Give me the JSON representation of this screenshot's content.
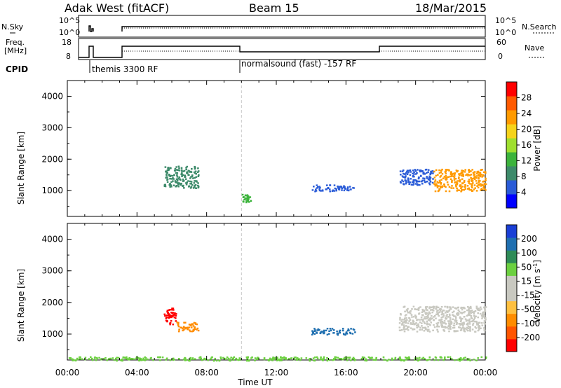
{
  "header": {
    "station": "Adak West (fitACF)",
    "beam": "Beam 15",
    "date": "18/Mar/2015"
  },
  "noise_panel": {
    "left_label": "N.Sky",
    "right_label": "N.Search",
    "left_ticks": [
      "10^5",
      "10^0"
    ],
    "right_ticks": [
      "10^5",
      "10^0"
    ]
  },
  "freq_panel": {
    "left_label_1": "Freq.",
    "left_label_2": "[MHz]",
    "right_label": "Nave",
    "left_ticks": [
      "18",
      "8"
    ],
    "right_ticks": [
      "60",
      "0"
    ]
  },
  "cpid": {
    "label": "CPID",
    "modes": [
      {
        "name": "themis 3300 RF",
        "start_hour": 1.5
      },
      {
        "name": "normalsound (fast) -157 RF",
        "start_hour": 10.0
      }
    ]
  },
  "time_axis": {
    "label": "Time UT",
    "ticks": [
      "00:00",
      "04:00",
      "08:00",
      "12:00",
      "16:00",
      "20:00",
      "00:00"
    ],
    "range_hours": [
      0,
      24
    ]
  },
  "colors": {
    "power_scale": [
      "#0000ff",
      "#2a5bd7",
      "#3d8a6a",
      "#3cb33c",
      "#9fdf2f",
      "#f5d31a",
      "#ff9a00",
      "#ff5a00",
      "#ff0000"
    ],
    "velocity_scale": [
      "#ff0000",
      "#ff5500",
      "#ff8c00",
      "#ffc040",
      "#c8c8c0",
      "#c8c8c0",
      "#6cd040",
      "#2e8b57",
      "#1f6fb0",
      "#1a3fd6"
    ]
  },
  "chart_data": [
    {
      "type": "heatmap",
      "title": "",
      "xlabel": "Time UT",
      "ylabel": "Slant Range [km]",
      "xlim": [
        0,
        24
      ],
      "ylim": [
        180,
        4500
      ],
      "yticks": [
        "1000",
        "2000",
        "3000",
        "4000"
      ],
      "colorbar": {
        "label": "Power [dB]",
        "range": [
          0,
          32
        ],
        "ticks": [
          "4",
          "8",
          "12",
          "16",
          "20",
          "24",
          "28"
        ]
      },
      "regions": [
        {
          "t_start": 5.5,
          "t_end": 7.5,
          "range_start": 1100,
          "range_end": 1800,
          "value_dB": 10
        },
        {
          "t_start": 10.0,
          "t_end": 10.5,
          "range_start": 650,
          "range_end": 900,
          "value_dB": 14
        },
        {
          "t_start": 14.0,
          "t_end": 16.5,
          "range_start": 1000,
          "range_end": 1200,
          "value_dB": 5
        },
        {
          "t_start": 19.0,
          "t_end": 21.0,
          "range_start": 1200,
          "range_end": 1700,
          "value_dB": 6
        },
        {
          "t_start": 21.0,
          "t_end": 24.0,
          "range_start": 1000,
          "range_end": 1700,
          "value_dB": 24
        }
      ]
    },
    {
      "type": "heatmap",
      "title": "",
      "xlabel": "Time UT",
      "ylabel": "Slant Range [km]",
      "xlim": [
        0,
        24
      ],
      "ylim": [
        180,
        4500
      ],
      "yticks": [
        "1000",
        "2000",
        "3000",
        "4000"
      ],
      "colorbar": {
        "label": "Velocity [m s^-1]",
        "ticks": [
          "200",
          "100",
          "50",
          "15",
          "-15",
          "-50",
          "-100",
          "-200"
        ]
      },
      "regions": [
        {
          "t_start": 5.5,
          "t_end": 6.2,
          "range_start": 1300,
          "range_end": 1850,
          "velocity": -200
        },
        {
          "t_start": 6.2,
          "t_end": 7.5,
          "range_start": 1100,
          "range_end": 1400,
          "velocity": -50
        },
        {
          "t_start": 14.0,
          "t_end": 16.5,
          "range_start": 1000,
          "range_end": 1200,
          "velocity": 200
        },
        {
          "t_start": 19.0,
          "t_end": 24.0,
          "range_start": 1100,
          "range_end": 1900,
          "velocity": 0
        },
        {
          "t_start": 0.0,
          "t_end": 24.0,
          "range_start": 180,
          "range_end": 300,
          "velocity": 30
        }
      ]
    }
  ]
}
